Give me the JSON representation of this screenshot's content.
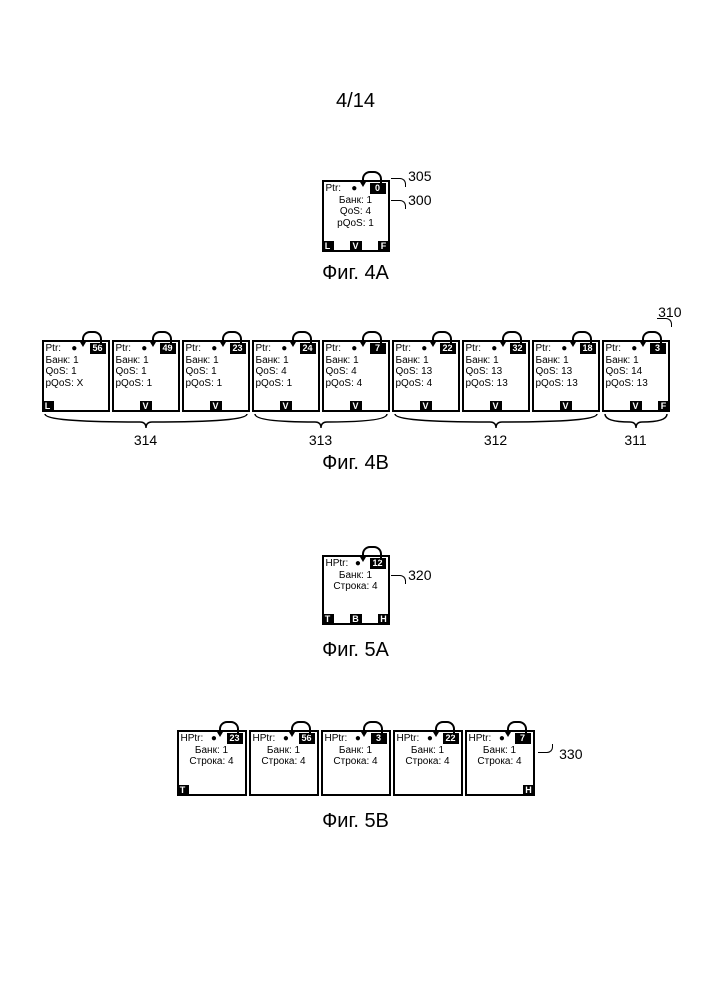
{
  "page_number": "4/14",
  "fig4a": {
    "label": "Фиг. 4A",
    "ref_top": "305",
    "ref_body": "300",
    "node": {
      "ptr_label": "Ptr:",
      "ptr_num": "0",
      "bank": "Банк: 1",
      "qos": "QoS: 4",
      "pqos": "pQoS: 1",
      "flags": {
        "L": "black",
        "V": "black",
        "F": "black"
      }
    }
  },
  "fig4b": {
    "label": "Фиг. 4B",
    "ref": "310",
    "nodes": [
      {
        "ptr_label": "Ptr:",
        "ptr_num": "56",
        "bank": "Банк: 1",
        "qos": "QoS: 1",
        "pqos": "pQoS: X",
        "flags": {
          "L": "black",
          "V": "clear",
          "F": "clear"
        }
      },
      {
        "ptr_label": "Ptr:",
        "ptr_num": "49",
        "bank": "Банк: 1",
        "qos": "QoS: 1",
        "pqos": "pQoS: 1",
        "flags": {
          "L": "clear",
          "V": "black",
          "F": "clear"
        }
      },
      {
        "ptr_label": "Ptr:",
        "ptr_num": "23",
        "bank": "Банк: 1",
        "qos": "QoS: 1",
        "pqos": "pQoS: 1",
        "flags": {
          "L": "clear",
          "V": "black",
          "F": "clear"
        }
      },
      {
        "ptr_label": "Ptr:",
        "ptr_num": "24",
        "bank": "Банк: 1",
        "qos": "QoS: 4",
        "pqos": "pQoS: 1",
        "flags": {
          "L": "clear",
          "V": "black",
          "F": "clear"
        }
      },
      {
        "ptr_label": "Ptr:",
        "ptr_num": "7",
        "bank": "Банк: 1",
        "qos": "QoS: 4",
        "pqos": "pQoS: 4",
        "flags": {
          "L": "clear",
          "V": "black",
          "F": "clear"
        }
      },
      {
        "ptr_label": "Ptr:",
        "ptr_num": "22",
        "bank": "Банк: 1",
        "qos": "QoS: 13",
        "pqos": "pQoS: 4",
        "flags": {
          "L": "clear",
          "V": "black",
          "F": "clear"
        }
      },
      {
        "ptr_label": "Ptr:",
        "ptr_num": "32",
        "bank": "Банк: 1",
        "qos": "QoS: 13",
        "pqos": "pQoS: 13",
        "flags": {
          "L": "clear",
          "V": "black",
          "F": "clear"
        }
      },
      {
        "ptr_label": "Ptr:",
        "ptr_num": "18",
        "bank": "Банк: 1",
        "qos": "QoS: 13",
        "pqos": "pQoS: 13",
        "flags": {
          "L": "clear",
          "V": "black",
          "F": "clear"
        }
      },
      {
        "ptr_label": "Ptr:",
        "ptr_num": "3",
        "bank": "Банк: 1",
        "qos": "QoS: 14",
        "pqos": "pQoS: 13",
        "flags": {
          "L": "clear",
          "V": "black",
          "F": "black"
        }
      }
    ],
    "braces": [
      {
        "label": "314",
        "span": 3
      },
      {
        "label": "313",
        "span": 2
      },
      {
        "label": "312",
        "span": 3
      },
      {
        "label": "311",
        "span": 1
      }
    ]
  },
  "fig5a": {
    "label": "Фиг. 5A",
    "ref": "320",
    "node": {
      "ptr_label": "HPtr:",
      "ptr_num": "12",
      "bank": "Банк: 1",
      "row": "Строка: 4",
      "flags": {
        "T": "black",
        "B": "black",
        "H": "black"
      }
    }
  },
  "fig5b": {
    "label": "Фиг. 5B",
    "ref": "330",
    "nodes": [
      {
        "ptr_label": "HPtr:",
        "ptr_num": "23",
        "bank": "Банк: 1",
        "row": "Строка: 4",
        "flags": {
          "T": "black",
          "B": "clear",
          "H": "clear"
        }
      },
      {
        "ptr_label": "HPtr:",
        "ptr_num": "56",
        "bank": "Банк: 1",
        "row": "Строка: 4",
        "flags": {
          "T": "clear",
          "B": "clear",
          "H": "clear"
        }
      },
      {
        "ptr_label": "HPtr:",
        "ptr_num": "3",
        "bank": "Банк: 1",
        "row": "Строка: 4",
        "flags": {
          "T": "clear",
          "B": "clear",
          "H": "clear"
        }
      },
      {
        "ptr_label": "HPtr:",
        "ptr_num": "22",
        "bank": "Банк: 1",
        "row": "Строка: 4",
        "flags": {
          "T": "clear",
          "B": "clear",
          "H": "clear"
        }
      },
      {
        "ptr_label": "HPtr:",
        "ptr_num": "7",
        "bank": "Банк: 1",
        "row": "Строка: 4",
        "flags": {
          "T": "clear",
          "B": "clear",
          "H": "black"
        }
      }
    ]
  }
}
